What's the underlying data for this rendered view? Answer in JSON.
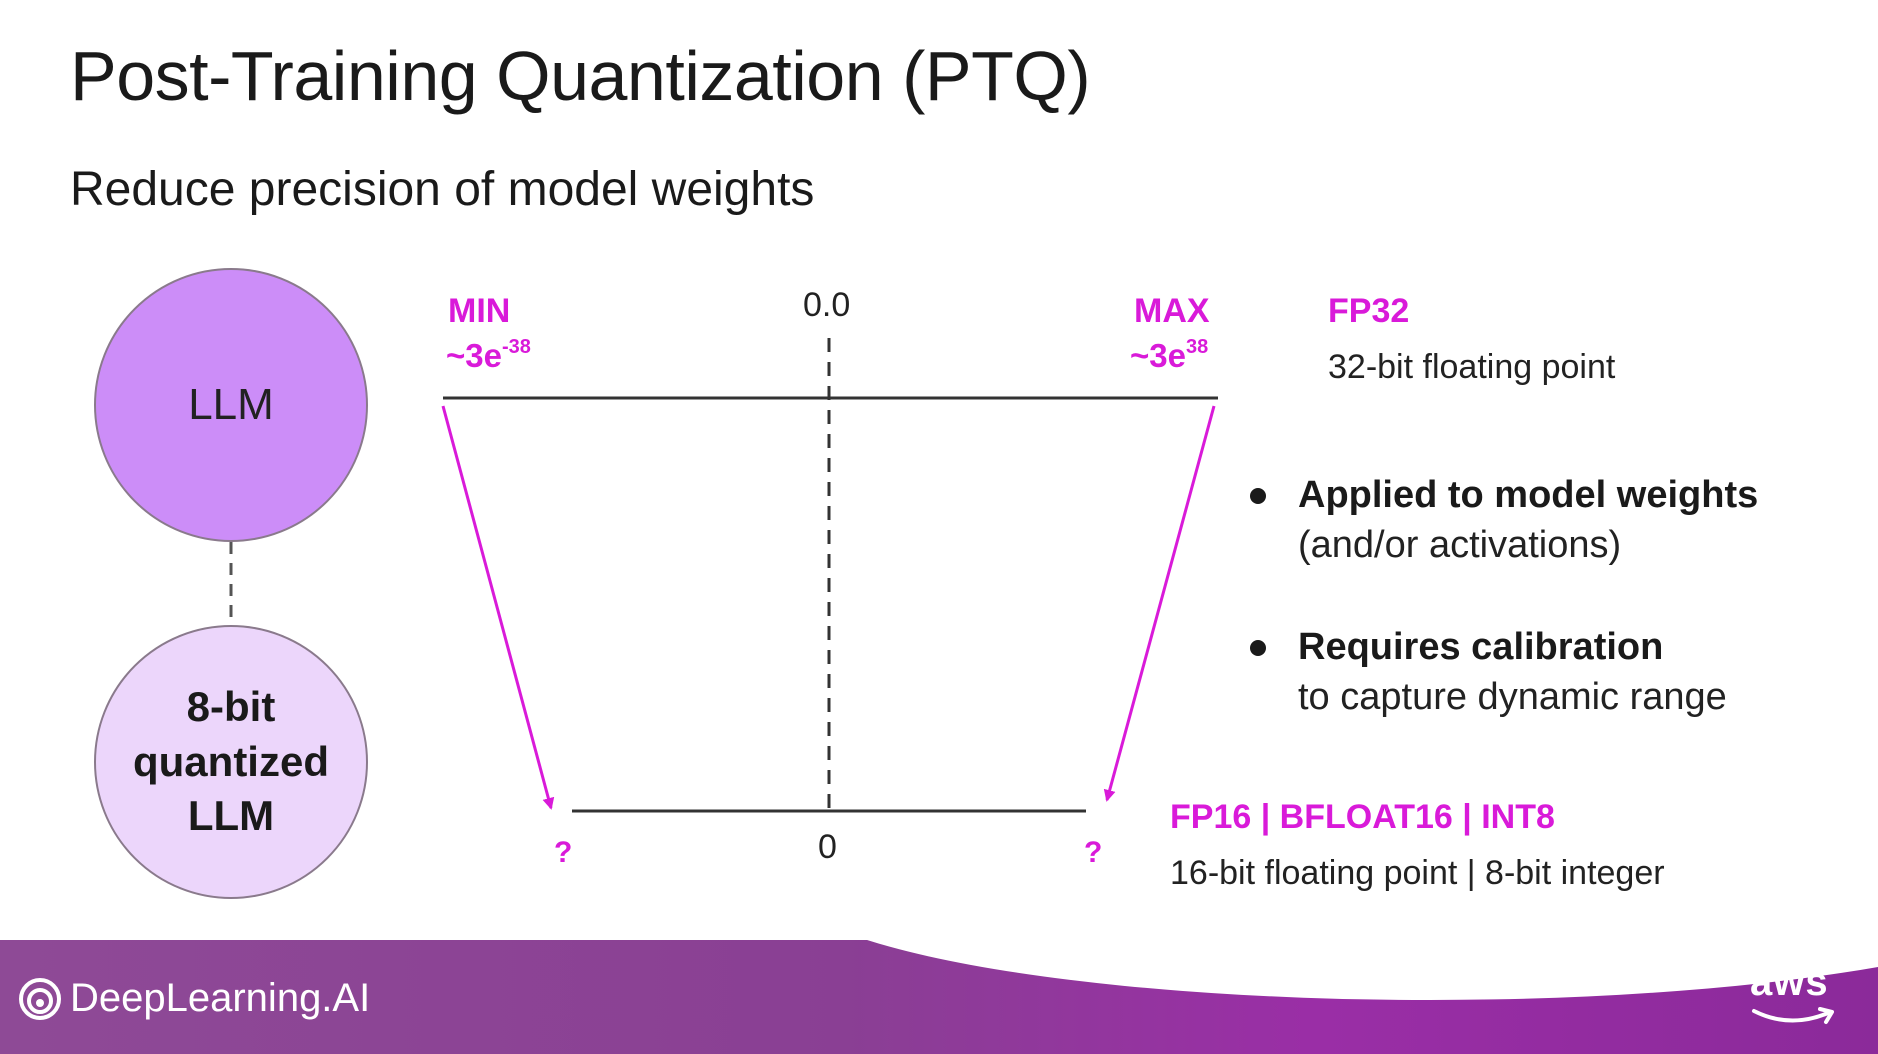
{
  "slide": {
    "title": "Post-Training Quantization (PTQ)",
    "subtitle": "Reduce precision of model weights"
  },
  "diagram": {
    "llm_label": "LLM",
    "quantized_label_lines": [
      "8-bit",
      "quantized",
      "LLM"
    ],
    "fp32_range": {
      "min_label": "MIN",
      "min_value": "~3e",
      "min_exp": "-38",
      "max_label": "MAX",
      "max_value": "~3e",
      "max_exp": "38",
      "center_label": "0.0"
    },
    "target_range": {
      "center_label": "0",
      "left_unknown": "?",
      "right_unknown": "?"
    },
    "fp32": {
      "label": "FP32",
      "description": "32-bit floating point"
    },
    "low_precision": {
      "label": "FP16 | BFLOAT16 | INT8",
      "description": "16-bit floating point | 8-bit integer"
    },
    "accent_color": "#d91ad9"
  },
  "bullets": [
    {
      "bold": "Applied to model weights",
      "rest": "(and/or activations)"
    },
    {
      "bold": "Requires calibration",
      "rest": "to capture dynamic range"
    }
  ],
  "footer": {
    "brand": "DeepLearning.AI",
    "brand_icon": "deeplearning-ai-logo-icon",
    "partner": "aws",
    "partner_icon": "aws-smile-icon"
  }
}
